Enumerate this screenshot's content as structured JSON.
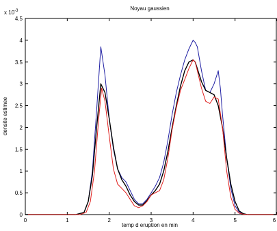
{
  "chart_data": {
    "type": "line",
    "title": "Noyau gaussien",
    "xlabel": "temp d   eruption en min",
    "ylabel": "densite estimee",
    "y_exponent_label": "x 10",
    "y_exponent_power": "-3",
    "xlim": [
      0,
      6
    ],
    "ylim": [
      0,
      4.5
    ],
    "xticks": [
      "0",
      "1",
      "2",
      "3",
      "4",
      "5",
      "6"
    ],
    "yticks": [
      "0",
      "0.5",
      "1",
      "1.5",
      "2",
      "2.5",
      "3",
      "3.5",
      "4",
      "4.5"
    ],
    "grid": false,
    "series": [
      {
        "color": "#1f1fa3",
        "x": [
          0,
          1.2,
          1.4,
          1.5,
          1.6,
          1.7,
          1.8,
          1.9,
          2.0,
          2.1,
          2.2,
          2.3,
          2.4,
          2.5,
          2.6,
          2.7,
          2.8,
          2.9,
          3.0,
          3.1,
          3.2,
          3.3,
          3.4,
          3.5,
          3.6,
          3.7,
          3.8,
          3.9,
          4.0,
          4.05,
          4.1,
          4.2,
          4.3,
          4.4,
          4.5,
          4.6,
          4.65,
          4.7,
          4.8,
          4.9,
          5.0,
          5.1,
          5.2,
          5.3,
          5.5,
          6.0
        ],
        "y": [
          0,
          0,
          0.05,
          0.3,
          1.0,
          2.4,
          3.85,
          3.2,
          2.2,
          1.5,
          1.05,
          0.85,
          0.75,
          0.55,
          0.35,
          0.25,
          0.25,
          0.35,
          0.5,
          0.65,
          0.85,
          1.2,
          1.7,
          2.3,
          2.8,
          3.2,
          3.55,
          3.8,
          4.0,
          3.95,
          3.85,
          3.3,
          2.85,
          2.8,
          3.0,
          3.3,
          2.9,
          2.3,
          1.3,
          0.6,
          0.2,
          0.05,
          0.01,
          0,
          0,
          0
        ]
      },
      {
        "color": "#000000",
        "x": [
          0,
          1.2,
          1.4,
          1.5,
          1.6,
          1.7,
          1.8,
          1.9,
          2.0,
          2.1,
          2.2,
          2.3,
          2.4,
          2.5,
          2.6,
          2.7,
          2.8,
          2.9,
          3.0,
          3.1,
          3.2,
          3.3,
          3.4,
          3.5,
          3.6,
          3.7,
          3.8,
          3.9,
          4.0,
          4.05,
          4.1,
          4.2,
          4.3,
          4.4,
          4.5,
          4.6,
          4.7,
          4.8,
          4.9,
          5.0,
          5.1,
          5.2,
          5.3,
          5.5,
          6.0
        ],
        "y": [
          0,
          0,
          0.05,
          0.3,
          0.9,
          2.0,
          3.0,
          2.8,
          2.2,
          1.55,
          1.05,
          0.8,
          0.65,
          0.45,
          0.3,
          0.22,
          0.22,
          0.32,
          0.45,
          0.55,
          0.7,
          1.0,
          1.45,
          2.0,
          2.5,
          2.95,
          3.3,
          3.5,
          3.55,
          3.5,
          3.35,
          3.05,
          2.85,
          2.8,
          2.75,
          2.5,
          2.0,
          1.3,
          0.7,
          0.3,
          0.08,
          0.02,
          0,
          0,
          0
        ]
      },
      {
        "color": "#e0201e",
        "x": [
          0,
          1.3,
          1.45,
          1.55,
          1.65,
          1.75,
          1.82,
          1.9,
          2.0,
          2.1,
          2.2,
          2.3,
          2.4,
          2.5,
          2.6,
          2.7,
          2.8,
          2.9,
          3.0,
          3.1,
          3.2,
          3.3,
          3.4,
          3.5,
          3.6,
          3.7,
          3.8,
          3.9,
          4.0,
          4.05,
          4.1,
          4.2,
          4.3,
          4.4,
          4.5,
          4.6,
          4.7,
          4.8,
          4.9,
          5.0,
          5.1,
          5.2,
          5.3,
          5.5,
          6.0
        ],
        "y": [
          0,
          0,
          0.05,
          0.3,
          1.0,
          2.2,
          2.9,
          2.6,
          1.8,
          1.05,
          0.7,
          0.6,
          0.5,
          0.35,
          0.2,
          0.16,
          0.2,
          0.3,
          0.45,
          0.5,
          0.55,
          0.8,
          1.3,
          1.95,
          2.45,
          2.85,
          3.1,
          3.35,
          3.55,
          3.5,
          3.3,
          2.9,
          2.6,
          2.55,
          2.7,
          2.65,
          2.0,
          1.0,
          0.4,
          0.12,
          0.03,
          0.01,
          0,
          0,
          0
        ]
      }
    ]
  }
}
